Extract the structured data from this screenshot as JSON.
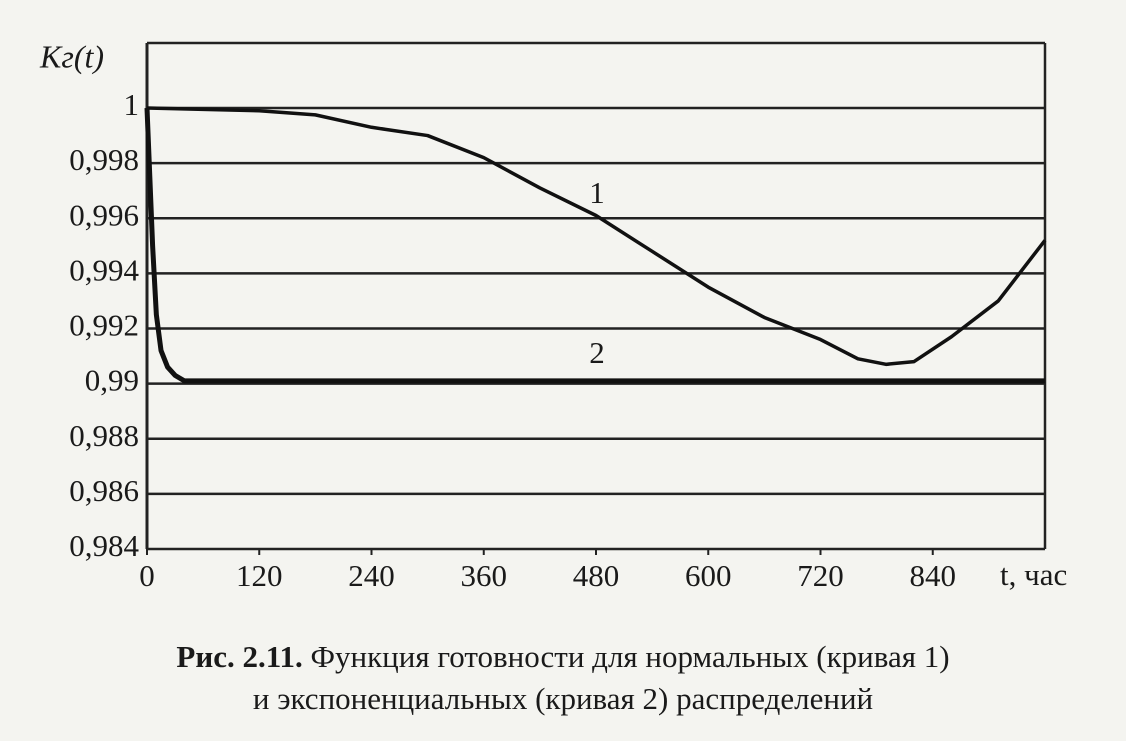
{
  "chart_data": {
    "type": "line",
    "ylabel": "Kг(t)",
    "xlabel": "t, час",
    "caption": {
      "number": "Рис. 2.11.",
      "lines": [
        "Функция готовности для нормальных (кривая 1)",
        "и экспоненциальных (кривая 2) распределений"
      ]
    },
    "annotations": [
      "1",
      "2"
    ],
    "xlim": [
      0,
      960
    ],
    "xticks": [
      0,
      120,
      240,
      360,
      480,
      600,
      720,
      840
    ],
    "ylim": [
      0.984,
      1
    ],
    "yticks": [
      {
        "value": 0.984,
        "label": "0,984"
      },
      {
        "value": 0.986,
        "label": "0,986"
      },
      {
        "value": 0.988,
        "label": "0,988"
      },
      {
        "value": 0.99,
        "label": "0,99"
      },
      {
        "value": 0.992,
        "label": "0,992"
      },
      {
        "value": 0.994,
        "label": "0,994"
      },
      {
        "value": 0.996,
        "label": "0,996"
      },
      {
        "value": 0.998,
        "label": "0,998"
      },
      1
    ],
    "grid": true,
    "series": [
      {
        "color": "#111111",
        "x": [
          0,
          60,
          120,
          180,
          240,
          300,
          360,
          420,
          480,
          540,
          600,
          660,
          720,
          760,
          790,
          820,
          860,
          910,
          960
        ],
        "values": [
          1,
          0.99995,
          0.9999,
          0.99975,
          0.9993,
          0.999,
          0.9982,
          0.9971,
          0.9961,
          0.9948,
          0.9935,
          0.9924,
          0.9916,
          0.9909,
          0.9907,
          0.9908,
          0.9917,
          0.993,
          0.9952
        ]
      },
      {
        "color": "#111111",
        "x": [
          0,
          3,
          6,
          10,
          15,
          22,
          30,
          40,
          960
        ],
        "values": [
          1,
          0.9975,
          0.995,
          0.9925,
          0.9912,
          0.9906,
          0.9903,
          0.9901,
          0.9901
        ]
      }
    ]
  }
}
